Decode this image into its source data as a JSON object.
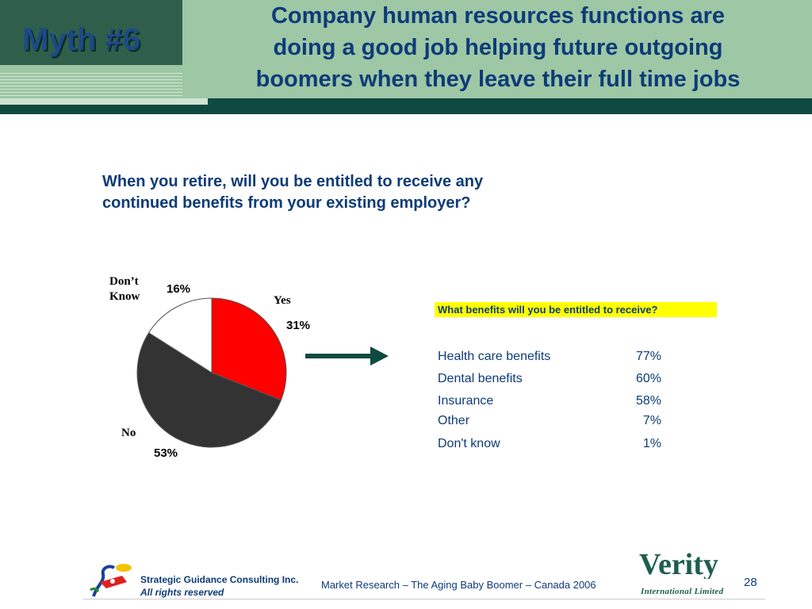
{
  "header": {
    "myth_label": "Myth #6",
    "title_lines": [
      "Company human resources functions are",
      "doing a good job helping future outgoing",
      "boomers when they leave their full time jobs"
    ]
  },
  "question": {
    "line1": "When you retire, will you be entitled to receive any",
    "line2": "continued benefits from your existing employer?"
  },
  "chart_data": {
    "type": "pie",
    "slices": [
      {
        "label": "Yes",
        "value": 31,
        "pct_label": "31%",
        "color": "#ff0000"
      },
      {
        "label": "No",
        "value": 53,
        "pct_label": "53%",
        "color": "#333333"
      },
      {
        "label_lines": [
          "Don’t",
          "Know"
        ],
        "value": 16,
        "pct_label": "16%",
        "color": "#ffffff"
      }
    ]
  },
  "benefits": {
    "heading": "What benefits will you be entitled to receive?",
    "rows": [
      {
        "label": "Health care benefits",
        "value": "77%"
      },
      {
        "label": "Dental benefits",
        "value": "60%"
      },
      {
        "label": "Insurance",
        "value": "58%"
      },
      {
        "label": "Other",
        "value": "7%"
      },
      {
        "label": "Don't know",
        "value": "1%"
      }
    ]
  },
  "footer": {
    "company": "Strategic Guidance Consulting Inc.",
    "rights": "All rights reserved",
    "center_text": "Market Research – The Aging Baby Boomer – Canada 2006",
    "verity_logo": "Verity",
    "verity_sub": "International Limited",
    "page_number": "28"
  },
  "colors": {
    "title_blue": "#0d3b78",
    "header_green": "#9dc7a5",
    "dark_green": "#0f4a40",
    "highlight": "#ffff00"
  }
}
